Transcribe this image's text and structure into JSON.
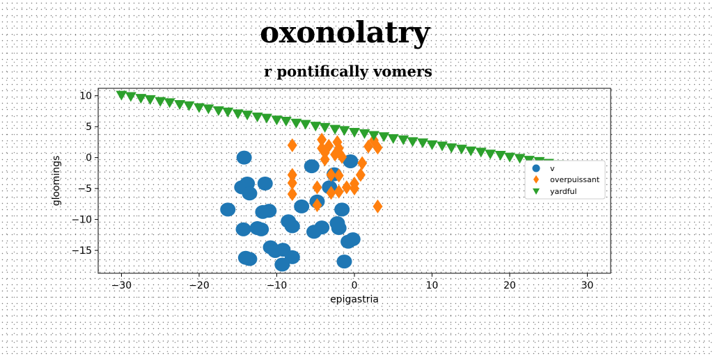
{
  "figure": {
    "title": "oxonolatry",
    "subtitle": "r pontifically vomers"
  },
  "chart_data": {
    "type": "scatter",
    "title": "oxonolatry",
    "subtitle": "r pontifically vomers",
    "xlabel": "epigastria",
    "ylabel": "gloomings",
    "xlim": [
      -33,
      33
    ],
    "ylim": [
      -18.7,
      11.2
    ],
    "xticks": [
      -30,
      -20,
      -10,
      0,
      10,
      20,
      30
    ],
    "yticks": [
      10,
      5,
      0,
      -5,
      -10,
      -15
    ],
    "xtick_labels": [
      "−30",
      "−20",
      "−10",
      "0",
      "10",
      "20",
      "30"
    ],
    "ytick_labels": [
      "10",
      "5",
      "0",
      "−5",
      "−10",
      "−15"
    ],
    "grid": false,
    "legend_position": "right",
    "series": [
      {
        "name": "v",
        "marker": "circle",
        "color": "#1f77b4",
        "points": [
          [
            -14.2,
            0.0
          ],
          [
            -14.5,
            -4.8
          ],
          [
            -13.8,
            -4.2
          ],
          [
            -13.5,
            -5.8
          ],
          [
            -11.5,
            -4.2
          ],
          [
            -16.3,
            -8.4
          ],
          [
            -11.0,
            -8.6
          ],
          [
            -11.8,
            -8.8
          ],
          [
            -14.3,
            -11.6
          ],
          [
            -12.5,
            -11.4
          ],
          [
            -12.0,
            -11.6
          ],
          [
            -8.5,
            -10.3
          ],
          [
            -8.0,
            -11.1
          ],
          [
            -10.8,
            -14.5
          ],
          [
            -10.2,
            -15.1
          ],
          [
            -9.2,
            -14.9
          ],
          [
            -14.0,
            -16.2
          ],
          [
            -13.5,
            -16.4
          ],
          [
            -8.0,
            -16.1
          ],
          [
            -9.3,
            -17.3
          ],
          [
            -5.5,
            -1.4
          ],
          [
            -6.8,
            -7.9
          ],
          [
            -4.8,
            -7.1
          ],
          [
            -3.2,
            -4.8
          ],
          [
            -2.6,
            -2.7
          ],
          [
            -4.2,
            -11.3
          ],
          [
            -5.2,
            -12.0
          ],
          [
            -2.0,
            -11.4
          ],
          [
            -2.2,
            -10.6
          ],
          [
            -1.6,
            -8.4
          ],
          [
            -0.5,
            -0.6
          ],
          [
            -0.8,
            -13.6
          ],
          [
            -0.2,
            -13.2
          ],
          [
            -1.3,
            -16.8
          ]
        ]
      },
      {
        "name": "overpuissant",
        "marker": "thin_diamond",
        "color": "#ff7f0e",
        "points": [
          [
            -8.0,
            2.0
          ],
          [
            -8.0,
            -2.8
          ],
          [
            -8.0,
            -4.1
          ],
          [
            -8.0,
            -5.9
          ],
          [
            -4.8,
            -4.8
          ],
          [
            -4.8,
            -7.7
          ],
          [
            -4.2,
            2.9
          ],
          [
            -4.2,
            1.5
          ],
          [
            -3.8,
            0.8
          ],
          [
            -3.8,
            -0.3
          ],
          [
            -3.3,
            1.9
          ],
          [
            -3.0,
            -2.8
          ],
          [
            -3.0,
            -5.7
          ],
          [
            -2.5,
            0.5
          ],
          [
            -2.2,
            2.5
          ],
          [
            -2.0,
            1.5
          ],
          [
            -1.6,
            0.1
          ],
          [
            -2.0,
            -2.9
          ],
          [
            -2.0,
            -5.5
          ],
          [
            -1.0,
            -4.8
          ],
          [
            0.0,
            -4.2
          ],
          [
            0.0,
            -5.0
          ],
          [
            0.8,
            -2.8
          ],
          [
            1.0,
            -0.9
          ],
          [
            1.8,
            1.8
          ],
          [
            2.5,
            2.8
          ],
          [
            3.0,
            1.6
          ],
          [
            3.0,
            -7.9
          ]
        ]
      },
      {
        "name": "yardful",
        "marker": "triangle_down",
        "color": "#2ca02c",
        "points": [
          [
            -30.0,
            10.0
          ],
          [
            -28.8,
            9.8
          ],
          [
            -27.5,
            9.5
          ],
          [
            -26.3,
            9.3
          ],
          [
            -25.0,
            9.0
          ],
          [
            -23.8,
            8.8
          ],
          [
            -22.5,
            8.5
          ],
          [
            -21.3,
            8.3
          ],
          [
            -20.0,
            8.0
          ],
          [
            -18.8,
            7.8
          ],
          [
            -17.5,
            7.5
          ],
          [
            -16.3,
            7.3
          ],
          [
            -15.0,
            7.0
          ],
          [
            -13.8,
            6.8
          ],
          [
            -12.5,
            6.5
          ],
          [
            -11.3,
            6.3
          ],
          [
            -10.0,
            6.0
          ],
          [
            -8.8,
            5.8
          ],
          [
            -7.5,
            5.5
          ],
          [
            -6.3,
            5.3
          ],
          [
            -5.0,
            5.0
          ],
          [
            -3.8,
            4.8
          ],
          [
            -2.5,
            4.5
          ],
          [
            -1.3,
            4.3
          ],
          [
            0.0,
            4.0
          ],
          [
            1.3,
            3.8
          ],
          [
            2.5,
            3.5
          ],
          [
            3.8,
            3.3
          ],
          [
            5.0,
            3.0
          ],
          [
            6.3,
            2.8
          ],
          [
            7.5,
            2.5
          ],
          [
            8.8,
            2.3
          ],
          [
            10.0,
            2.0
          ],
          [
            11.3,
            1.8
          ],
          [
            12.5,
            1.5
          ],
          [
            13.8,
            1.3
          ],
          [
            15.0,
            1.0
          ],
          [
            16.3,
            0.8
          ],
          [
            17.5,
            0.5
          ],
          [
            18.8,
            0.3
          ],
          [
            20.0,
            0.0
          ],
          [
            21.3,
            -0.2
          ],
          [
            22.5,
            -0.5
          ],
          [
            23.8,
            -0.7
          ],
          [
            25.0,
            -1.0
          ],
          [
            26.3,
            -1.2
          ],
          [
            27.5,
            -1.5
          ],
          [
            28.8,
            -1.7
          ],
          [
            30.0,
            -2.0
          ]
        ]
      }
    ]
  }
}
